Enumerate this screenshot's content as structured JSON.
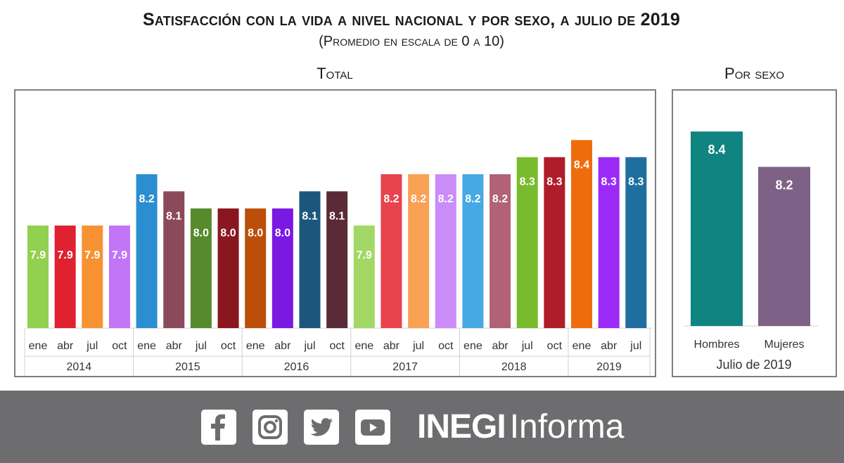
{
  "header": {
    "title": "Satisfacción con la vida a nivel nacional y por sexo, a julio de 2019",
    "subtitle": "(Promedio en escala de 0 a 10)"
  },
  "panels": {
    "total_label": "Total",
    "sexo_label": "Por sexo"
  },
  "chart_data": [
    {
      "type": "bar",
      "title": "Total",
      "ylim": [
        7.3,
        8.5
      ],
      "categories": [
        "ene",
        "abr",
        "jul",
        "oct",
        "ene",
        "abr",
        "jul",
        "oct",
        "ene",
        "abr",
        "jul",
        "oct",
        "ene",
        "abr",
        "jul",
        "oct",
        "ene",
        "abr",
        "jul",
        "oct",
        "ene",
        "abr",
        "jul"
      ],
      "groups": [
        {
          "label": "2014",
          "count": 4
        },
        {
          "label": "2015",
          "count": 4
        },
        {
          "label": "2016",
          "count": 4
        },
        {
          "label": "2017",
          "count": 4
        },
        {
          "label": "2018",
          "count": 4
        },
        {
          "label": "2019",
          "count": 3
        }
      ],
      "values": [
        7.9,
        7.9,
        7.9,
        7.9,
        8.2,
        8.1,
        8.0,
        8.0,
        8.0,
        8.0,
        8.1,
        8.1,
        7.9,
        8.2,
        8.2,
        8.2,
        8.2,
        8.2,
        8.3,
        8.3,
        8.4,
        8.3,
        8.3
      ],
      "value_labels": [
        "7.9",
        "7.9",
        "7.9",
        "7.9",
        "8.2",
        "8.1",
        "8.0",
        "8.0",
        "8.0",
        "8.0",
        "8.1",
        "8.1",
        "7.9",
        "8.2",
        "8.2",
        "8.2",
        "8.2",
        "8.2",
        "8.3",
        "8.3",
        "8.4",
        "8.3",
        "8.3"
      ],
      "colors": [
        "#92d050",
        "#e0212f",
        "#f79233",
        "#c275f7",
        "#2b8ed0",
        "#8b4a5c",
        "#568a2c",
        "#8a1620",
        "#bb4f0a",
        "#7a19e1",
        "#1d567d",
        "#5b2a37",
        "#a3d866",
        "#e8434f",
        "#f9a155",
        "#c98cf9",
        "#46a9e3",
        "#b16275",
        "#78bb2d",
        "#af1c2a",
        "#ef6c0c",
        "#9b2af7",
        "#1f6f9e"
      ]
    },
    {
      "type": "bar",
      "title": "Por sexo",
      "xlabel": "Julio de 2019",
      "ylim": [
        7.3,
        8.5
      ],
      "categories": [
        "Hombres",
        "Mujeres"
      ],
      "values": [
        8.4,
        8.2
      ],
      "value_labels": [
        "8.4",
        "8.2"
      ],
      "colors": [
        "#0f8481",
        "#7e6186"
      ]
    }
  ],
  "footer": {
    "background": "#6d6d6f",
    "icons": [
      "facebook-icon",
      "instagram-icon",
      "twitter-icon",
      "youtube-icon"
    ],
    "brand_bold": "INEGI",
    "brand_light": "Informa"
  }
}
